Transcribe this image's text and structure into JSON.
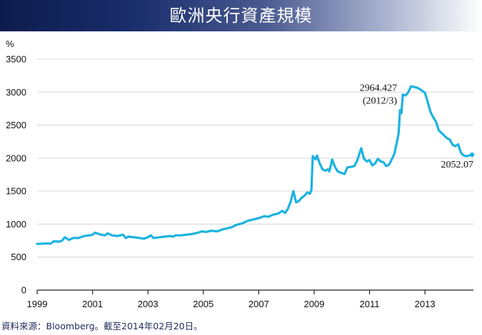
{
  "title": "歐洲央行資產規模",
  "source": "資料來源：Bloomberg。截至2014年02月20日。",
  "colors": {
    "line": "#1bb3e0",
    "grid": "#d6d6d6",
    "axis": "#222222",
    "title_bg": "#152567"
  },
  "chart_data": {
    "type": "line",
    "title": "歐洲央行資產規模",
    "ylabel": "%",
    "xlabel": "",
    "ylim": [
      0,
      3500
    ],
    "yticks": [
      0,
      500,
      1000,
      1500,
      2000,
      2500,
      3000,
      3500
    ],
    "xlim": [
      1999,
      2014.75
    ],
    "xticks": [
      1999,
      2001,
      2003,
      2005,
      2007,
      2009,
      2011,
      2013
    ],
    "xtick_labels": [
      "1999",
      "2001",
      "2003",
      "2005",
      "2007",
      "2009",
      "2011",
      "2013"
    ],
    "grid": "horizontal",
    "series": [
      {
        "points": [
          [
            1999.0,
            700
          ],
          [
            1999.3,
            705
          ],
          [
            1999.5,
            708
          ],
          [
            1999.6,
            740
          ],
          [
            1999.8,
            735
          ],
          [
            1999.9,
            750
          ],
          [
            2000.0,
            800
          ],
          [
            2000.15,
            760
          ],
          [
            2000.3,
            790
          ],
          [
            2000.5,
            790
          ],
          [
            2000.7,
            820
          ],
          [
            2000.9,
            830
          ],
          [
            2001.0,
            840
          ],
          [
            2001.1,
            870
          ],
          [
            2001.3,
            840
          ],
          [
            2001.45,
            830
          ],
          [
            2001.55,
            860
          ],
          [
            2001.7,
            830
          ],
          [
            2001.9,
            820
          ],
          [
            2002.1,
            840
          ],
          [
            2002.2,
            790
          ],
          [
            2002.3,
            810
          ],
          [
            2002.5,
            800
          ],
          [
            2002.7,
            790
          ],
          [
            2002.85,
            780
          ],
          [
            2003.0,
            800
          ],
          [
            2003.1,
            830
          ],
          [
            2003.2,
            790
          ],
          [
            2003.4,
            800
          ],
          [
            2003.6,
            810
          ],
          [
            2003.8,
            820
          ],
          [
            2003.9,
            810
          ],
          [
            2004.0,
            830
          ],
          [
            2004.2,
            830
          ],
          [
            2004.4,
            840
          ],
          [
            2004.6,
            850
          ],
          [
            2004.8,
            870
          ],
          [
            2004.95,
            890
          ],
          [
            2005.1,
            880
          ],
          [
            2005.3,
            900
          ],
          [
            2005.5,
            890
          ],
          [
            2005.7,
            920
          ],
          [
            2005.9,
            940
          ],
          [
            2006.0,
            950
          ],
          [
            2006.2,
            990
          ],
          [
            2006.4,
            1010
          ],
          [
            2006.6,
            1050
          ],
          [
            2006.8,
            1070
          ],
          [
            2007.0,
            1090
          ],
          [
            2007.2,
            1120
          ],
          [
            2007.35,
            1110
          ],
          [
            2007.5,
            1140
          ],
          [
            2007.7,
            1160
          ],
          [
            2007.85,
            1200
          ],
          [
            2007.95,
            1170
          ],
          [
            2008.05,
            1230
          ],
          [
            2008.15,
            1340
          ],
          [
            2008.25,
            1500
          ],
          [
            2008.35,
            1330
          ],
          [
            2008.45,
            1350
          ],
          [
            2008.55,
            1400
          ],
          [
            2008.65,
            1430
          ],
          [
            2008.75,
            1480
          ],
          [
            2008.85,
            1460
          ],
          [
            2008.9,
            1520
          ],
          [
            2008.95,
            2030
          ],
          [
            2009.05,
            1980
          ],
          [
            2009.1,
            2040
          ],
          [
            2009.2,
            1920
          ],
          [
            2009.3,
            1830
          ],
          [
            2009.4,
            1810
          ],
          [
            2009.5,
            1830
          ],
          [
            2009.55,
            1800
          ],
          [
            2009.65,
            1980
          ],
          [
            2009.75,
            1870
          ],
          [
            2009.85,
            1800
          ],
          [
            2009.95,
            1780
          ],
          [
            2010.1,
            1760
          ],
          [
            2010.2,
            1860
          ],
          [
            2010.35,
            1870
          ],
          [
            2010.45,
            1880
          ],
          [
            2010.55,
            1960
          ],
          [
            2010.7,
            2150
          ],
          [
            2010.8,
            1990
          ],
          [
            2010.9,
            1950
          ],
          [
            2011.0,
            1970
          ],
          [
            2011.1,
            1890
          ],
          [
            2011.2,
            1920
          ],
          [
            2011.3,
            1990
          ],
          [
            2011.4,
            1950
          ],
          [
            2011.5,
            1940
          ],
          [
            2011.6,
            1880
          ],
          [
            2011.7,
            1900
          ],
          [
            2011.8,
            1980
          ],
          [
            2011.9,
            2070
          ],
          [
            2012.0,
            2270
          ],
          [
            2012.05,
            2380
          ],
          [
            2012.1,
            2730
          ],
          [
            2012.15,
            2680
          ],
          [
            2012.2,
            2964.427
          ],
          [
            2012.3,
            2950
          ],
          [
            2012.4,
            3000
          ],
          [
            2012.5,
            3090
          ],
          [
            2012.6,
            3080
          ],
          [
            2012.7,
            3070
          ],
          [
            2012.8,
            3050
          ],
          [
            2012.9,
            3020
          ],
          [
            2013.0,
            2990
          ],
          [
            2013.1,
            2850
          ],
          [
            2013.2,
            2700
          ],
          [
            2013.3,
            2620
          ],
          [
            2013.4,
            2550
          ],
          [
            2013.5,
            2420
          ],
          [
            2013.6,
            2380
          ],
          [
            2013.7,
            2340
          ],
          [
            2013.8,
            2300
          ],
          [
            2013.9,
            2280
          ],
          [
            2014.0,
            2200
          ],
          [
            2014.1,
            2180
          ],
          [
            2014.2,
            2210
          ],
          [
            2014.3,
            2080
          ],
          [
            2014.4,
            2040
          ],
          [
            2014.5,
            2030
          ],
          [
            2014.6,
            2040
          ],
          [
            2014.7,
            2052.07
          ]
        ]
      }
    ],
    "annotations": [
      {
        "lines": [
          "2964.427",
          "(2012/3)"
        ],
        "x": 2012.2,
        "y": 2964.427,
        "anchor": "end"
      },
      {
        "lines": [
          "2052.07"
        ],
        "x": 2014.7,
        "y": 2052.07,
        "anchor": "end-below"
      }
    ]
  }
}
